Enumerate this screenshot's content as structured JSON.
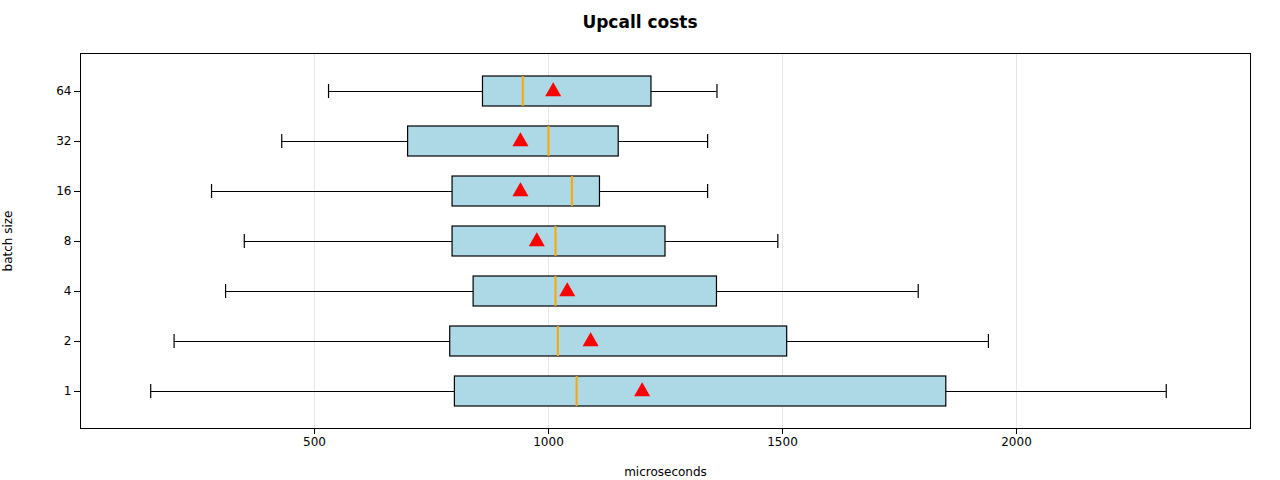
{
  "chart_data": {
    "type": "box",
    "orientation": "horizontal",
    "title": "Upcall costs",
    "xlabel": "microseconds",
    "ylabel": "batch size",
    "categories": [
      1,
      2,
      4,
      8,
      16,
      32,
      64
    ],
    "whislo": [
      150,
      200,
      310,
      350,
      280,
      430,
      530
    ],
    "q1": [
      800,
      790,
      840,
      795,
      795,
      700,
      860
    ],
    "q3": [
      1850,
      1510,
      1360,
      1250,
      1110,
      1150,
      1220
    ],
    "whishi": [
      2320,
      1940,
      1790,
      1490,
      1340,
      1340,
      1360
    ],
    "color": "#add8e6",
    "median": {
      "values": [
        1060,
        1020,
        1015,
        1015,
        1050,
        1000,
        945
      ],
      "color": "#FFA500"
    },
    "mean": {
      "values": [
        1200,
        1090,
        1040,
        975,
        940,
        940,
        1010
      ],
      "color": "red",
      "marker": "triangle"
    },
    "xlim": [
      0,
      2500
    ],
    "xticks": [
      500,
      1000,
      1500,
      2000
    ],
    "grid": "x"
  }
}
